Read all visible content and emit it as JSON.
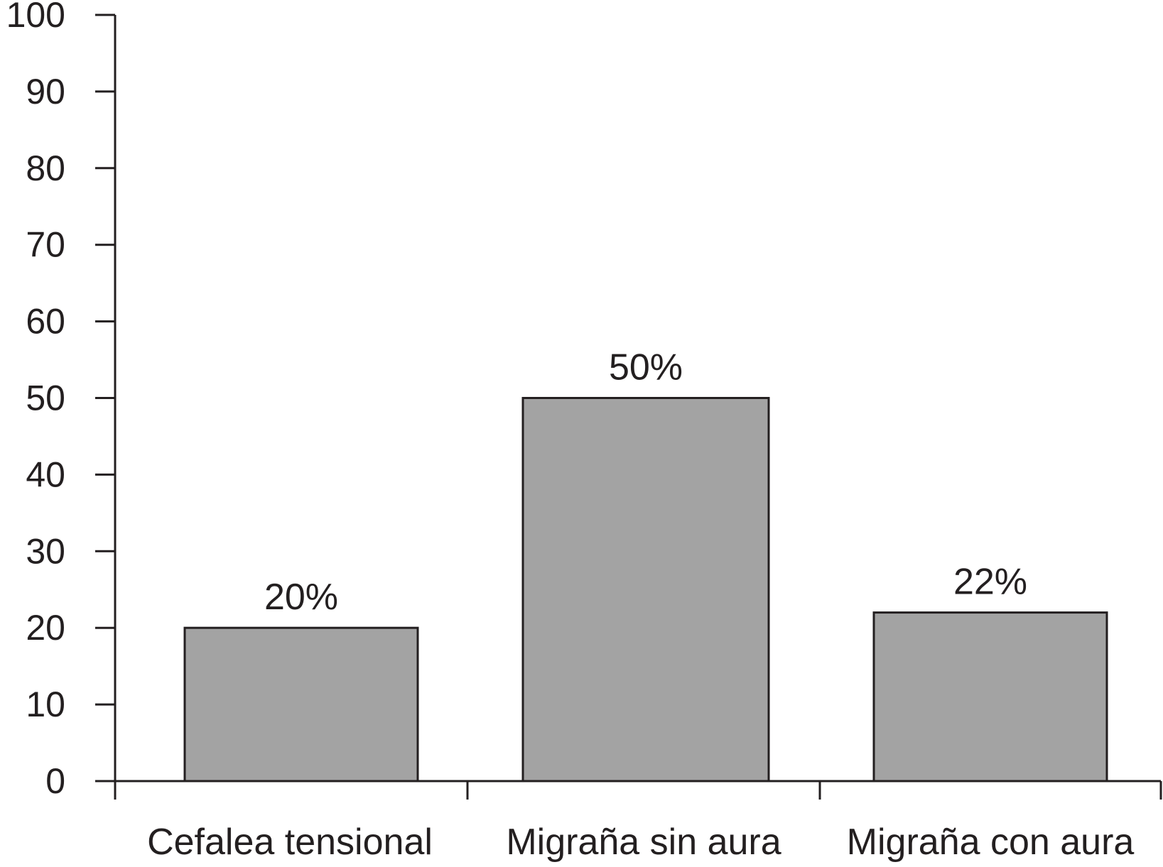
{
  "chart_data": {
    "type": "bar",
    "categories": [
      "Cefalea tensional",
      "Migraña sin aura",
      "Migraña con aura"
    ],
    "values": [
      20,
      50,
      22
    ],
    "data_labels": [
      "20%",
      "50%",
      "22%"
    ],
    "title": "",
    "xlabel": "",
    "ylabel": "",
    "ylim": [
      0,
      100
    ],
    "yticks": [
      0,
      10,
      20,
      30,
      40,
      50,
      60,
      70,
      80,
      90,
      100
    ],
    "ytick_labels": [
      "0",
      "10",
      "20",
      "30",
      "40",
      "50",
      "60",
      "70",
      "80",
      "90",
      "100"
    ],
    "grid": false,
    "legend": "none",
    "colors": {
      "bar_fill": "#a3a3a3",
      "bar_stroke": "#231f20",
      "axis": "#231f20",
      "text": "#231f20",
      "background": "#ffffff"
    }
  }
}
